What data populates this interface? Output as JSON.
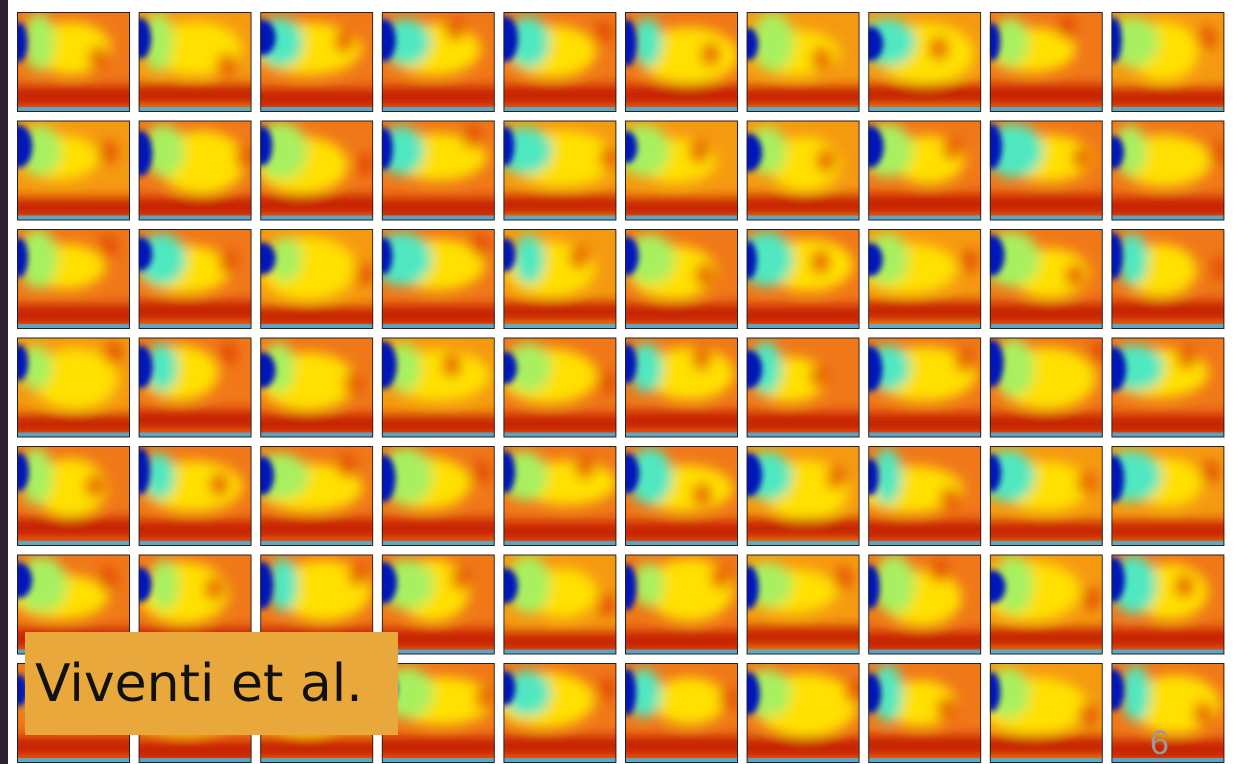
{
  "caption": "Viventi et al.",
  "page_number": "6"
}
